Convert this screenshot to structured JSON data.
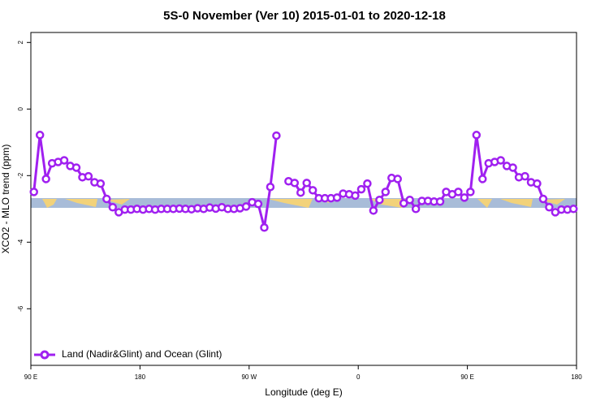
{
  "chart_data": {
    "type": "line",
    "title": "5S-0 November (Ver 10)   2015-01-01 to 2020-12-18",
    "x_label": "Longitude (deg E)",
    "y_label": "XCO2 - MLO trend (ppm)",
    "xlim": [
      90,
      540
    ],
    "xticks": [
      {
        "value": 90,
        "label": "90 E"
      },
      180,
      {
        "value": 270,
        "label": "90 W"
      },
      {
        "value": 360,
        "label": "0"
      },
      {
        "value": 450,
        "label": "90 E"
      },
      {
        "value": 540,
        "label": "180"
      }
    ],
    "ylim": [
      -7.7,
      2.3
    ],
    "yticks": [
      -6,
      -4,
      -2,
      0,
      2
    ],
    "legend": "bottom-left",
    "x": [
      92.5,
      97.5,
      102.5,
      107.5,
      112.5,
      117.5,
      122.5,
      127.5,
      132.5,
      137.5,
      142.5,
      147.5,
      152.5,
      157.5,
      162.5,
      167.5,
      172.5,
      177.5,
      182.5,
      187.5,
      192.5,
      197.5,
      202.5,
      207.5,
      212.5,
      217.5,
      222.5,
      227.5,
      232.5,
      237.5,
      242.5,
      247.5,
      252.5,
      257.5,
      262.5,
      267.5,
      272.5,
      277.5,
      282.5,
      287.5,
      292.5,
      297.5,
      302.5,
      307.5,
      312.5,
      317.5,
      322.5,
      327.5,
      332.5,
      337.5,
      342.5,
      347.5,
      352.5,
      357.5,
      362.5,
      367.5,
      372.5,
      377.5,
      382.5,
      387.5,
      392.5,
      397.5,
      402.5,
      407.5,
      412.5,
      417.5,
      422.5,
      427.5,
      432.5,
      437.5,
      442.5,
      447.5,
      452.5,
      457.5,
      462.5,
      467.5,
      472.5,
      477.5,
      482.5,
      487.5,
      492.5,
      497.5,
      502.5,
      507.5,
      512.5,
      517.5,
      522.5,
      527.5,
      532.5,
      537.5
    ],
    "series": [
      {
        "name": "Land (Nadir&Glint) and Ocean (Glint)",
        "color": "#a020f0",
        "values": [
          -2.49,
          -0.78,
          -2.1,
          -1.63,
          -1.59,
          -1.54,
          -1.71,
          -1.76,
          -2.05,
          -2.02,
          -2.2,
          -2.24,
          -2.7,
          -2.95,
          -3.1,
          -3.02,
          -3.02,
          -3.0,
          -3.02,
          -3.0,
          -3.02,
          -3.0,
          -3.0,
          -3.0,
          -2.99,
          -3.0,
          -3.01,
          -2.98,
          -3.0,
          -2.96,
          -2.99,
          -2.95,
          -3.0,
          -3.0,
          -2.98,
          -2.93,
          -2.8,
          -2.85,
          -3.56,
          -2.34,
          -0.8,
          null,
          -2.17,
          -2.22,
          -2.51,
          -2.22,
          -2.44,
          -2.68,
          -2.68,
          -2.68,
          -2.66,
          -2.54,
          -2.56,
          -2.6,
          -2.41,
          -2.24,
          -3.05,
          -2.73,
          -2.49,
          -2.07,
          -2.1,
          -2.83,
          -2.73,
          -3.0,
          -2.76,
          -2.76,
          -2.78,
          -2.78,
          -2.49,
          -2.56,
          -2.49,
          -2.66,
          -2.49,
          -0.78,
          -2.1,
          -1.63,
          -1.59,
          -1.54,
          -1.71,
          -1.76,
          -2.05,
          -2.02,
          -2.2,
          -2.24,
          -2.7,
          -2.95,
          -3.1,
          -3.02,
          -3.02,
          -3.0
        ]
      }
    ]
  }
}
